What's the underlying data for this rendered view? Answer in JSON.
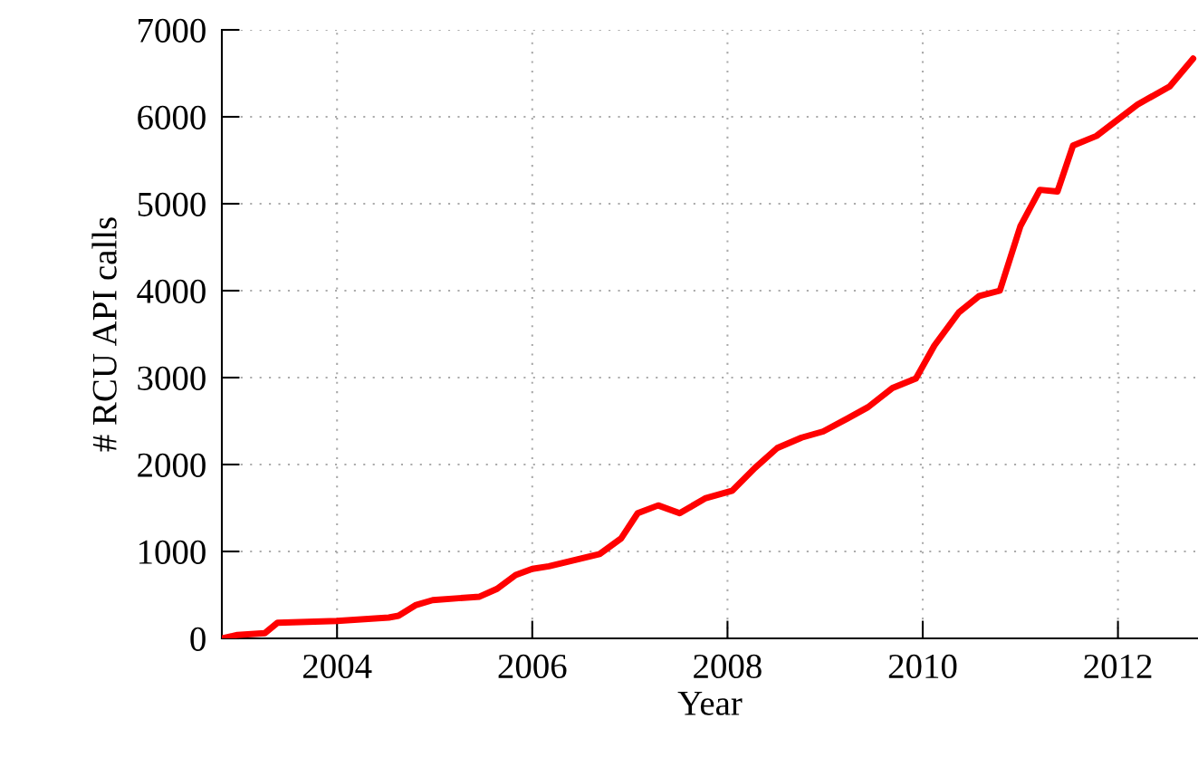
{
  "chart_data": {
    "type": "line",
    "xlabel": "Year",
    "ylabel": "# RCU API calls",
    "xlim": [
      2002.82,
      2012.82
    ],
    "ylim": [
      0,
      7000
    ],
    "xticks": [
      2004,
      2006,
      2008,
      2010,
      2012
    ],
    "yticks": [
      0,
      1000,
      2000,
      3000,
      4000,
      5000,
      6000,
      7000
    ],
    "grid": true,
    "line_style": "solid",
    "marker": "none",
    "series": [
      {
        "color": "#ff0000",
        "x": [
          2002.82,
          2002.98,
          2003.26,
          2003.39,
          2004.0,
          2004.53,
          2004.63,
          2004.81,
          2004.98,
          2005.46,
          2005.64,
          2005.83,
          2006.0,
          2006.17,
          2006.69,
          2006.91,
          2007.08,
          2007.29,
          2007.51,
          2007.77,
          2008.05,
          2008.28,
          2008.51,
          2008.76,
          2008.98,
          2009.23,
          2009.44,
          2009.69,
          2009.93,
          2010.12,
          2010.37,
          2010.58,
          2010.79,
          2011.0,
          2011.2,
          2011.38,
          2011.54,
          2011.78,
          2012.2,
          2012.53,
          2012.77
        ],
        "values": [
          0,
          40,
          60,
          180,
          200,
          240,
          260,
          385,
          440,
          480,
          570,
          730,
          800,
          830,
          970,
          1150,
          1440,
          1530,
          1440,
          1610,
          1700,
          1960,
          2190,
          2310,
          2380,
          2530,
          2660,
          2880,
          2990,
          3370,
          3750,
          3940,
          4000,
          4740,
          5160,
          5140,
          5670,
          5780,
          6140,
          6350,
          6670
        ]
      }
    ]
  }
}
